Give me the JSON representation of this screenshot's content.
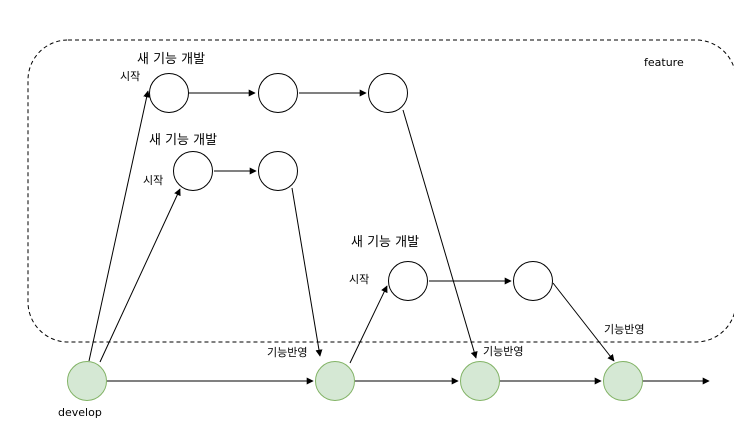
{
  "colors": {
    "stroke": "#000000",
    "feature_fill": "#ffffff",
    "develop_fill": "#d5e8d4",
    "develop_stroke": "#82b366"
  },
  "feature_group": {
    "label": "feature"
  },
  "develop": {
    "label": "develop"
  },
  "branches": [
    {
      "title": "새 기능 개발",
      "start_label": "시작"
    },
    {
      "title": "새 기능 개발",
      "start_label": "시작"
    },
    {
      "title": "새 기능 개발",
      "start_label": "시작"
    }
  ],
  "merges": [
    {
      "label": "기능반영"
    },
    {
      "label": "기능반영"
    },
    {
      "label": "기능반영"
    }
  ]
}
